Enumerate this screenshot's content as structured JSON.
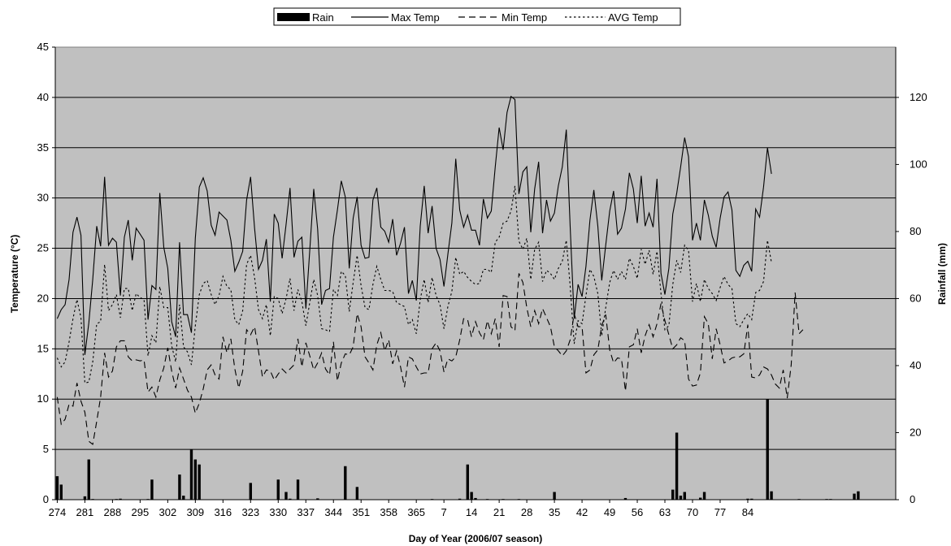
{
  "chart_data": {
    "type": "combo-line-bar",
    "xlabel": "Day of Year (2006/07 season)",
    "ylabel_left": "Temperature (°C)",
    "ylabel_right": "Rainfall (mm)",
    "ylim_left": [
      0,
      45
    ],
    "ylim_right": [
      0,
      135
    ],
    "yticks_left": [
      "0",
      "5",
      "10",
      "15",
      "20",
      "25",
      "30",
      "35",
      "40",
      "45"
    ],
    "yticks_right": [
      "0",
      "20",
      "40",
      "60",
      "80",
      "100",
      "120"
    ],
    "xtick_labels": [
      "274",
      "281",
      "288",
      "295",
      "302",
      "309",
      "316",
      "323",
      "330",
      "337",
      "344",
      "351",
      "358",
      "365",
      "7",
      "14",
      "21",
      "28",
      "35",
      "42",
      "49",
      "56",
      "63",
      "70",
      "77",
      "84"
    ],
    "legend_position": "top-center",
    "grid": "horizontal",
    "colors": {
      "plot_bg": "#c0c0c0",
      "series": "#000000"
    },
    "series": [
      {
        "name": "Rain",
        "type": "bar",
        "axis": "right",
        "values": [
          7.0,
          4.5,
          0,
          0,
          0,
          0,
          0,
          1.0,
          12.0,
          0.2,
          0,
          0,
          0,
          0,
          0,
          0.2,
          0.3,
          0,
          0,
          0,
          0,
          0,
          0,
          0.2,
          6.0,
          0,
          0,
          0,
          0,
          0,
          0,
          7.5,
          1.2,
          0,
          15.0,
          12.0,
          10.5,
          0,
          0,
          0,
          0,
          0,
          0,
          0,
          0,
          0,
          0,
          0,
          0,
          5.0,
          0,
          0,
          0,
          0,
          0,
          0,
          6.0,
          0,
          2.3,
          0.3,
          0,
          6.0,
          0,
          0,
          0,
          0,
          0.4,
          0,
          0,
          0,
          0,
          0,
          0,
          10.0,
          0,
          0,
          3.8,
          0,
          0,
          0,
          0,
          0,
          0,
          0,
          0,
          0,
          0,
          0,
          0,
          0,
          0,
          0,
          0,
          0,
          0,
          0.2,
          0,
          0,
          0,
          0,
          0,
          0,
          0.3,
          0,
          10.5,
          2.3,
          0.5,
          0,
          0,
          0.2,
          0,
          0,
          0,
          0.2,
          0,
          0,
          0,
          0.2,
          0,
          0,
          0,
          0,
          0,
          0,
          0,
          0,
          2.3,
          0,
          0,
          0,
          0,
          0,
          0,
          0,
          0,
          0,
          0,
          0,
          0,
          0,
          0,
          0,
          0,
          0,
          0.5,
          0,
          0,
          0,
          0,
          0,
          0,
          0,
          0,
          0,
          0,
          0,
          3.0,
          20.0,
          1.2,
          2.3,
          0,
          0,
          0,
          0.6,
          2.3,
          0,
          0,
          0,
          0,
          0,
          0,
          0,
          0,
          0,
          0,
          0.3,
          0.3,
          0,
          0,
          0,
          30.0,
          2.5,
          0,
          0,
          0,
          0,
          0,
          0,
          0.2,
          0,
          0,
          0,
          0,
          0,
          0,
          0.2,
          0.2,
          0,
          0,
          0,
          0,
          0,
          1.8,
          2.5,
          0,
          0,
          0,
          0,
          0,
          0,
          0,
          0,
          0
        ]
      },
      {
        "name": "Max Temp",
        "type": "line",
        "dash": "solid",
        "axis": "left",
        "values": [
          18.0,
          18.9,
          19.4,
          21.9,
          26.6,
          28.1,
          26.3,
          14.4,
          17.6,
          21.9,
          27.2,
          25.2,
          32.1,
          25.3,
          26.0,
          25.6,
          20.3,
          26.1,
          27.8,
          23.8,
          27.0,
          26.4,
          25.8,
          17.9,
          21.3,
          20.9,
          30.5,
          25.1,
          23.0,
          17.7,
          16.2,
          25.6,
          18.4,
          18.4,
          16.6,
          26.0,
          31.1,
          32.0,
          30.7,
          27.3,
          26.3,
          28.6,
          28.2,
          27.8,
          25.8,
          22.7,
          23.6,
          24.7,
          29.8,
          32.1,
          27.0,
          22.9,
          23.8,
          25.9,
          19.7,
          28.4,
          27.5,
          24.0,
          27.4,
          31.0,
          24.1,
          25.7,
          26.1,
          19.0,
          24.8,
          30.9,
          26.9,
          19.4,
          20.8,
          21.0,
          26.1,
          28.8,
          31.7,
          30.1,
          23.0,
          28.0,
          30.1,
          25.3,
          24.0,
          24.1,
          29.8,
          31.0,
          27.1,
          26.7,
          25.6,
          27.9,
          24.3,
          25.5,
          27.1,
          20.5,
          21.8,
          19.8,
          27.2,
          31.2,
          26.5,
          29.2,
          25.0,
          23.9,
          21.2,
          24.4,
          27.5,
          33.9,
          28.8,
          27.1,
          28.3,
          26.8,
          26.8,
          25.3,
          29.9,
          28.0,
          28.7,
          33.1,
          37.0,
          34.8,
          38.5,
          40.1,
          39.8,
          30.4,
          32.6,
          33.1,
          26.6,
          30.9,
          33.6,
          26.5,
          29.8,
          27.7,
          28.5,
          31.2,
          33.1,
          36.8,
          27.1,
          18.0,
          21.4,
          20.2,
          23.2,
          27.8,
          30.8,
          27.2,
          21.8,
          25.3,
          28.7,
          30.7,
          26.4,
          27.0,
          28.9,
          32.5,
          30.9,
          27.5,
          32.2,
          27.2,
          28.5,
          27.1,
          31.9,
          22.5,
          20.4,
          23.0,
          28.4,
          30.5,
          33.1,
          36.0,
          34.1,
          25.8,
          27.5,
          25.8,
          29.8,
          28.3,
          26.2,
          25.1,
          28.0,
          30.1,
          30.6,
          28.8,
          22.8,
          22.2,
          23.3,
          23.7,
          22.7,
          28.9,
          28.1,
          31.1,
          35.0,
          32.4
        ]
      },
      {
        "name": "Min Temp",
        "type": "line",
        "dash": "dashed",
        "axis": "left",
        "values": [
          10.2,
          7.5,
          8.0,
          9.5,
          9.3,
          11.6,
          9.8,
          8.7,
          5.8,
          5.5,
          7.8,
          10.2,
          14.6,
          12.2,
          12.8,
          15.2,
          15.8,
          15.8,
          14.2,
          13.8,
          13.9,
          13.8,
          13.9,
          10.7,
          11.2,
          10.2,
          11.9,
          13.1,
          15.1,
          12.8,
          11.1,
          13.1,
          12.0,
          10.9,
          10.2,
          8.6,
          9.6,
          11.0,
          12.9,
          13.4,
          12.4,
          12.0,
          16.2,
          14.6,
          16.0,
          13.0,
          11.1,
          12.8,
          16.9,
          16.4,
          17.2,
          14.8,
          12.2,
          12.9,
          12.8,
          11.9,
          12.5,
          13.0,
          12.6,
          13.0,
          13.4,
          16.0,
          13.2,
          15.6,
          14.3,
          12.9,
          13.6,
          14.6,
          13.0,
          12.4,
          15.7,
          11.8,
          13.6,
          14.5,
          14.4,
          15.2,
          18.5,
          17.2,
          14.2,
          13.6,
          12.9,
          15.4,
          16.6,
          14.8,
          15.9,
          13.5,
          14.8,
          13.2,
          11.2,
          14.2,
          14.0,
          13.2,
          12.5,
          12.6,
          12.6,
          15.0,
          15.6,
          14.8,
          12.7,
          14.0,
          13.8,
          14.2,
          15.9,
          18.0,
          17.9,
          16.2,
          17.7,
          16.6,
          15.9,
          17.8,
          16.5,
          18.0,
          15.2,
          20.3,
          20.2,
          17.2,
          16.8,
          22.5,
          21.6,
          19.1,
          17.2,
          18.8,
          17.5,
          19.0,
          18.1,
          17.2,
          15.2,
          14.8,
          14.3,
          14.8,
          15.9,
          18.5,
          17.2,
          17.2,
          12.6,
          12.9,
          14.4,
          14.9,
          17.3,
          18.4,
          14.9,
          13.6,
          14.1,
          14.0,
          10.8,
          15.2,
          15.4,
          17.0,
          14.6,
          16.3,
          17.4,
          16.2,
          17.5,
          19.5,
          17.8,
          16.4,
          15.0,
          15.4,
          16.1,
          15.8,
          12.0,
          11.3,
          11.4,
          12.6,
          18.2,
          17.5,
          14.0,
          17.0,
          15.4,
          13.6,
          13.8,
          14.1,
          14.2,
          14.2,
          14.5,
          17.4,
          12.2,
          12.1,
          12.4,
          13.2,
          13.0,
          12.4,
          11.5,
          11.1,
          12.9,
          10.1,
          13.4,
          20.6,
          16.5,
          16.9
        ]
      },
      {
        "name": "AVG Temp",
        "type": "line",
        "dash": "dotted",
        "axis": "left",
        "values": [
          14.1,
          13.2,
          13.7,
          15.7,
          18.0,
          19.9,
          18.1,
          11.6,
          11.7,
          13.7,
          17.5,
          17.7,
          23.4,
          18.8,
          19.4,
          20.4,
          18.1,
          21.0,
          21.0,
          18.8,
          20.5,
          20.1,
          19.9,
          14.3,
          16.3,
          15.6,
          21.2,
          19.1,
          19.1,
          15.3,
          13.7,
          19.4,
          15.2,
          14.7,
          13.4,
          17.3,
          20.4,
          21.5,
          21.8,
          20.4,
          19.4,
          20.3,
          22.2,
          21.2,
          20.9,
          17.9,
          17.4,
          18.8,
          23.4,
          24.3,
          22.1,
          18.9,
          18.0,
          19.4,
          16.3,
          20.2,
          20.0,
          18.5,
          20.0,
          22.0,
          18.8,
          20.9,
          19.7,
          17.3,
          19.6,
          21.9,
          20.3,
          17.0,
          16.9,
          16.7,
          20.9,
          20.3,
          22.7,
          22.3,
          18.7,
          21.6,
          24.3,
          21.3,
          19.1,
          18.9,
          21.4,
          23.2,
          21.9,
          20.8,
          20.8,
          20.7,
          19.6,
          19.4,
          19.2,
          17.4,
          17.9,
          16.5,
          19.9,
          21.9,
          19.6,
          22.1,
          20.3,
          19.4,
          17.0,
          19.2,
          20.7,
          24.1,
          22.4,
          22.7,
          22.1,
          21.7,
          21.4,
          21.5,
          22.9,
          22.9,
          22.6,
          25.6,
          26.1,
          27.5,
          27.7,
          28.7,
          31.2,
          25.7,
          24.9,
          26.0,
          21.9,
          24.9,
          25.6,
          21.7,
          22.8,
          22.5,
          21.9,
          23.0,
          23.7,
          25.8,
          21.2,
          15.5,
          17.8,
          17.5,
          20.3,
          22.9,
          22.2,
          20.5,
          16.3,
          19.1,
          21.6,
          22.8,
          21.9,
          22.7,
          21.9,
          24.0,
          23.2,
          22.0,
          24.9,
          23.4,
          24.8,
          22.4,
          24.7,
          20.5,
          16.9,
          17.3,
          21.4,
          23.8,
          22.6,
          25.3,
          24.8,
          19.7,
          21.5,
          19.7,
          21.9,
          21.0,
          20.5,
          19.8,
          21.1,
          22.2,
          21.4,
          21.0,
          17.5,
          17.2,
          17.9,
          18.5,
          17.9,
          20.6,
          20.8,
          21.7,
          25.8,
          23.6
        ]
      }
    ]
  }
}
